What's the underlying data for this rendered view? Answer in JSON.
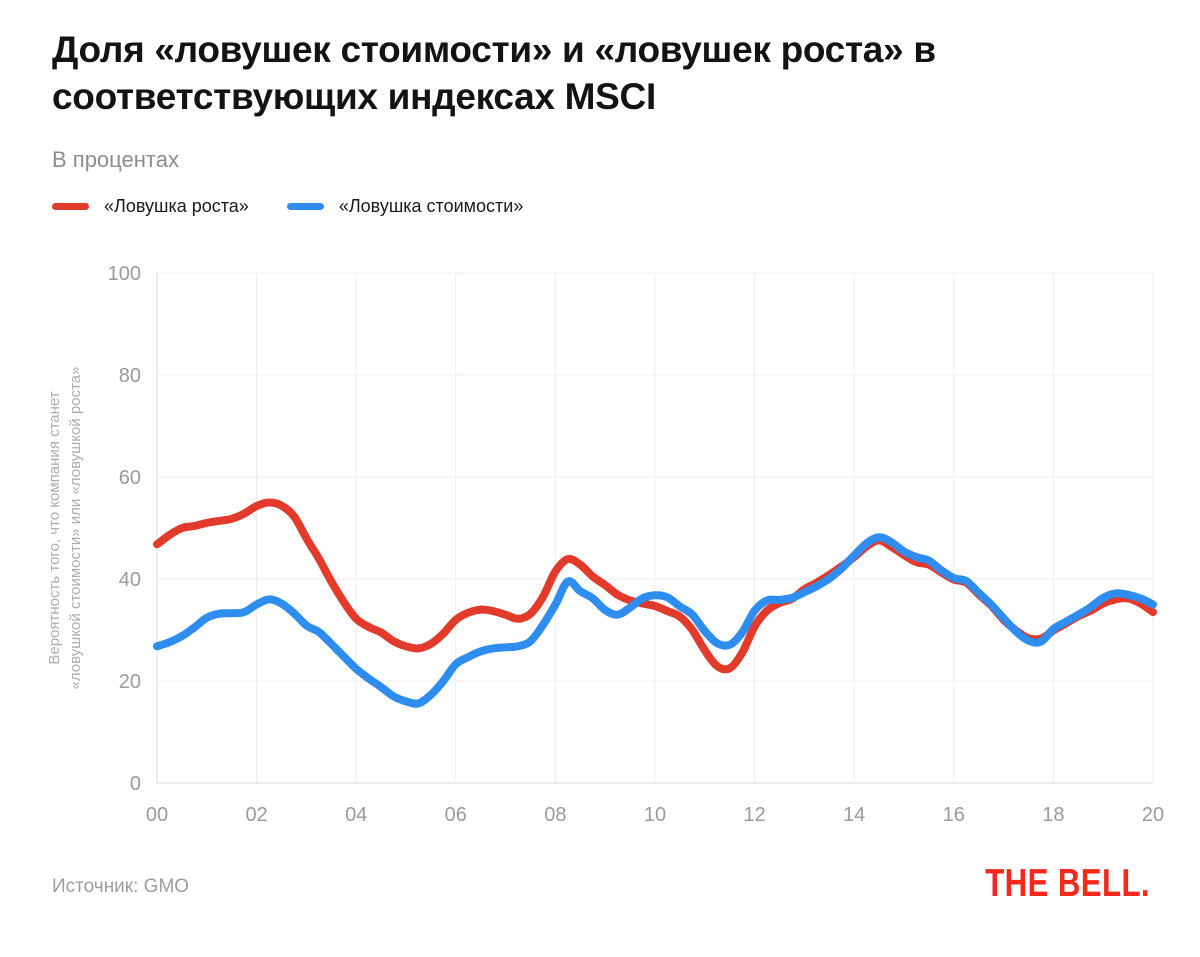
{
  "title": {
    "lines": [
      "Доля «ловушек стоимости» и «ловушек роста» в",
      "соответствующих индексах MSCI"
    ]
  },
  "subtitle": "В процентах",
  "y_axis_title": {
    "lines": [
      "Вероятность того, что компания станет",
      "«ловушкой стоимости» или «ловушкой роста»"
    ]
  },
  "footer": {
    "source": "Источник: GMO",
    "logo": "THE BELL."
  },
  "chart_data": {
    "type": "line",
    "title": "Доля «ловушек стоимости» и «ловушек роста» в соответствующих индексах MSCI",
    "subtitle": "В процентах",
    "ylabel": "Вероятность того, что компания станет «ловушкой стоимости» или «ловушкой роста»",
    "xlabel": "",
    "xlim": [
      2000,
      2020
    ],
    "ylim": [
      0,
      100
    ],
    "grid": true,
    "legend_position": "top-left",
    "x_start": 2000,
    "x_step": 0.25,
    "x_ticks": [
      "00",
      "02",
      "04",
      "06",
      "08",
      "10",
      "12",
      "14",
      "16",
      "18",
      "20"
    ],
    "x_tick_years": [
      2000,
      2002,
      2004,
      2006,
      2008,
      2010,
      2012,
      2014,
      2016,
      2018,
      2020
    ],
    "y_ticks": [
      0,
      20,
      40,
      60,
      80,
      100
    ],
    "series": [
      {
        "name": "«Ловушка роста»",
        "color": "#e23a2b",
        "values": [
          46.8,
          48.6,
          50,
          50.4,
          51,
          51.4,
          51.8,
          52.8,
          54.3,
          55,
          54.4,
          52.3,
          48,
          44,
          39.5,
          35.5,
          32.2,
          30.6,
          29.5,
          27.8,
          26.8,
          26.4,
          27.3,
          29.3,
          32,
          33.4,
          34,
          33.7,
          33,
          32.2,
          33.2,
          36.5,
          41.5,
          43.9,
          42.8,
          40.5,
          38.8,
          36.9,
          35.8,
          35.2,
          34.7,
          33.7,
          32.6,
          30,
          26,
          22.9,
          22.5,
          25.5,
          30.7,
          33.8,
          35.3,
          36.1,
          38,
          39.3,
          40.8,
          42.5,
          44.3,
          46.4,
          47.6,
          46.3,
          44.7,
          43.3,
          42.8,
          41.3,
          39.9,
          39.3,
          37,
          34.8,
          32,
          29.9,
          28.4,
          28.3,
          29.9,
          31.3,
          32.7,
          33.8,
          35.2,
          36,
          36.2,
          35.2,
          33.5
        ]
      },
      {
        "name": "«Ловушка стоимости»",
        "color": "#2f8df0",
        "values": [
          26.8,
          27.6,
          28.8,
          30.5,
          32.4,
          33.2,
          33.3,
          33.5,
          35,
          36,
          35.2,
          33.3,
          30.9,
          29.6,
          27.3,
          24.8,
          22.4,
          20.5,
          18.8,
          17,
          16,
          15.6,
          17.3,
          20,
          23.3,
          24.7,
          25.8,
          26.4,
          26.6,
          26.8,
          27.8,
          31,
          35,
          39.5,
          37.6,
          36.2,
          33.9,
          33,
          34.4,
          36.2,
          36.8,
          36.4,
          34.6,
          33,
          29.8,
          27.4,
          27.1,
          29.5,
          33.8,
          35.8,
          35.9,
          36.3,
          37.4,
          38.6,
          40.1,
          42.1,
          44.6,
          47,
          48.2,
          47.2,
          45.4,
          44.3,
          43.6,
          41.7,
          40.2,
          39.6,
          37.3,
          35,
          32.3,
          29.7,
          27.9,
          27.7,
          30.2,
          31.6,
          33,
          34.5,
          36.3,
          37.2,
          36.9,
          36.2,
          35
        ]
      }
    ],
    "source": "Источник: GMO",
    "colors": {
      "grid": "#ececec",
      "axis": "#d9d9d9",
      "tick_label": "#9a9a9a"
    }
  }
}
